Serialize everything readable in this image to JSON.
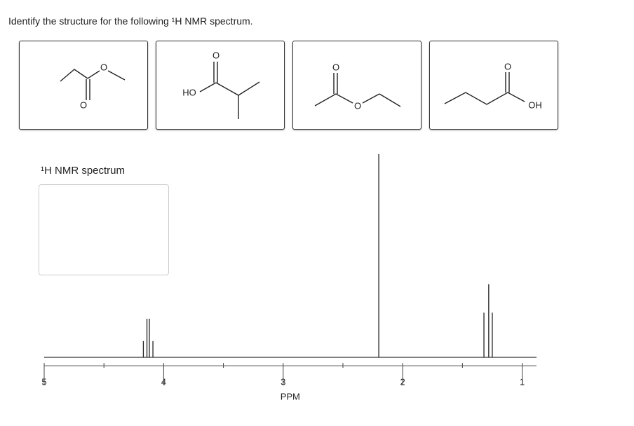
{
  "prompt": "Identify the structure for the following ¹H NMR spectrum.",
  "structures": [
    [
      "O",
      "O"
    ],
    [
      "HO",
      "O"
    ],
    [
      "O",
      "O"
    ],
    [
      "O",
      "OH"
    ]
  ],
  "spectrum": {
    "title": "¹H NMR spectrum",
    "xlabel": "PPM",
    "xlim": [
      5,
      0.88
    ],
    "xticks": [
      5,
      4,
      3,
      2,
      1
    ],
    "minor_xticks": [
      4.5,
      3.5,
      2.5,
      1.5
    ],
    "peaks": [
      {
        "x": 4.17,
        "height": 8
      },
      {
        "x": 4.14,
        "height": 19
      },
      {
        "x": 4.12,
        "height": 19
      },
      {
        "x": 4.09,
        "height": 8
      },
      {
        "x": 2.2,
        "height": 100
      },
      {
        "x": 1.32,
        "height": 22
      },
      {
        "x": 1.28,
        "height": 36
      },
      {
        "x": 1.25,
        "height": 22
      }
    ]
  }
}
